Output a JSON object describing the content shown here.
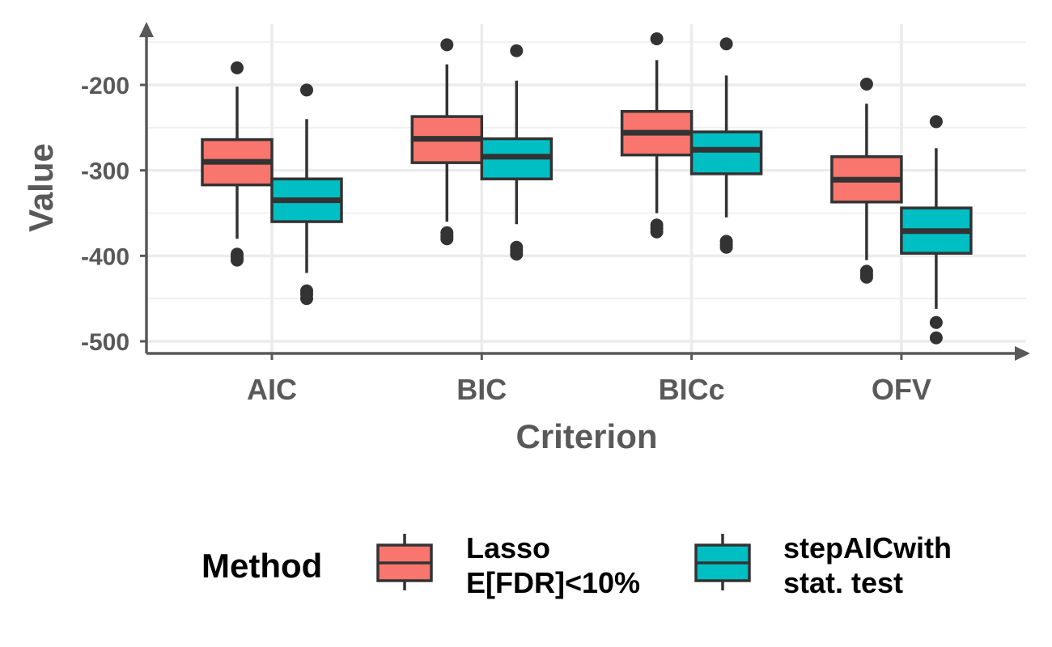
{
  "chart_data": {
    "type": "boxplot",
    "xlabel": "Criterion",
    "ylabel": "Value",
    "categories": [
      "AIC",
      "BIC",
      "BICc",
      "OFV"
    ],
    "y_ticks": [
      -200,
      -300,
      -400,
      -500
    ],
    "ylim": [
      -515,
      -135
    ],
    "grid": true,
    "legend_position": "bottom",
    "legend_title": "Method",
    "series": [
      {
        "name": "Lasso\nE[FDR]<10%",
        "color": "#F8766D",
        "boxes": [
          {
            "category": "AIC",
            "whisker_high": -202,
            "q3": -264,
            "median": -290,
            "q1": -317,
            "whisker_low": -380,
            "outliers": [
              -180,
              -398,
              -402,
              -405
            ]
          },
          {
            "category": "BIC",
            "whisker_high": -176,
            "q3": -237,
            "median": -263,
            "q1": -291,
            "whisker_low": -360,
            "outliers": [
              -153,
              -373,
              -377,
              -380
            ]
          },
          {
            "category": "BICc",
            "whisker_high": -171,
            "q3": -231,
            "median": -256,
            "q1": -282,
            "whisker_low": -350,
            "outliers": [
              -146,
              -364,
              -368,
              -372
            ]
          },
          {
            "category": "OFV",
            "whisker_high": -222,
            "q3": -284,
            "median": -311,
            "q1": -337,
            "whisker_low": -405,
            "outliers": [
              -199,
              -418,
              -422,
              -425
            ]
          }
        ]
      },
      {
        "name": "stepAICwith\nstat. test",
        "color": "#00BFC4",
        "boxes": [
          {
            "category": "AIC",
            "whisker_high": -240,
            "q3": -310,
            "median": -335,
            "q1": -360,
            "whisker_low": -420,
            "outliers": [
              -206,
              -441,
              -445,
              -450
            ]
          },
          {
            "category": "BIC",
            "whisker_high": -195,
            "q3": -263,
            "median": -284,
            "q1": -310,
            "whisker_low": -363,
            "outliers": [
              -160,
              -390,
              -394,
              -398
            ]
          },
          {
            "category": "BICc",
            "whisker_high": -189,
            "q3": -255,
            "median": -276,
            "q1": -304,
            "whisker_low": -355,
            "outliers": [
              -152,
              -383,
              -387,
              -390
            ]
          },
          {
            "category": "OFV",
            "whisker_high": -274,
            "q3": -344,
            "median": -371,
            "q1": -397,
            "whisker_low": -462,
            "outliers": [
              -243,
              -478,
              -496
            ]
          }
        ]
      }
    ]
  }
}
